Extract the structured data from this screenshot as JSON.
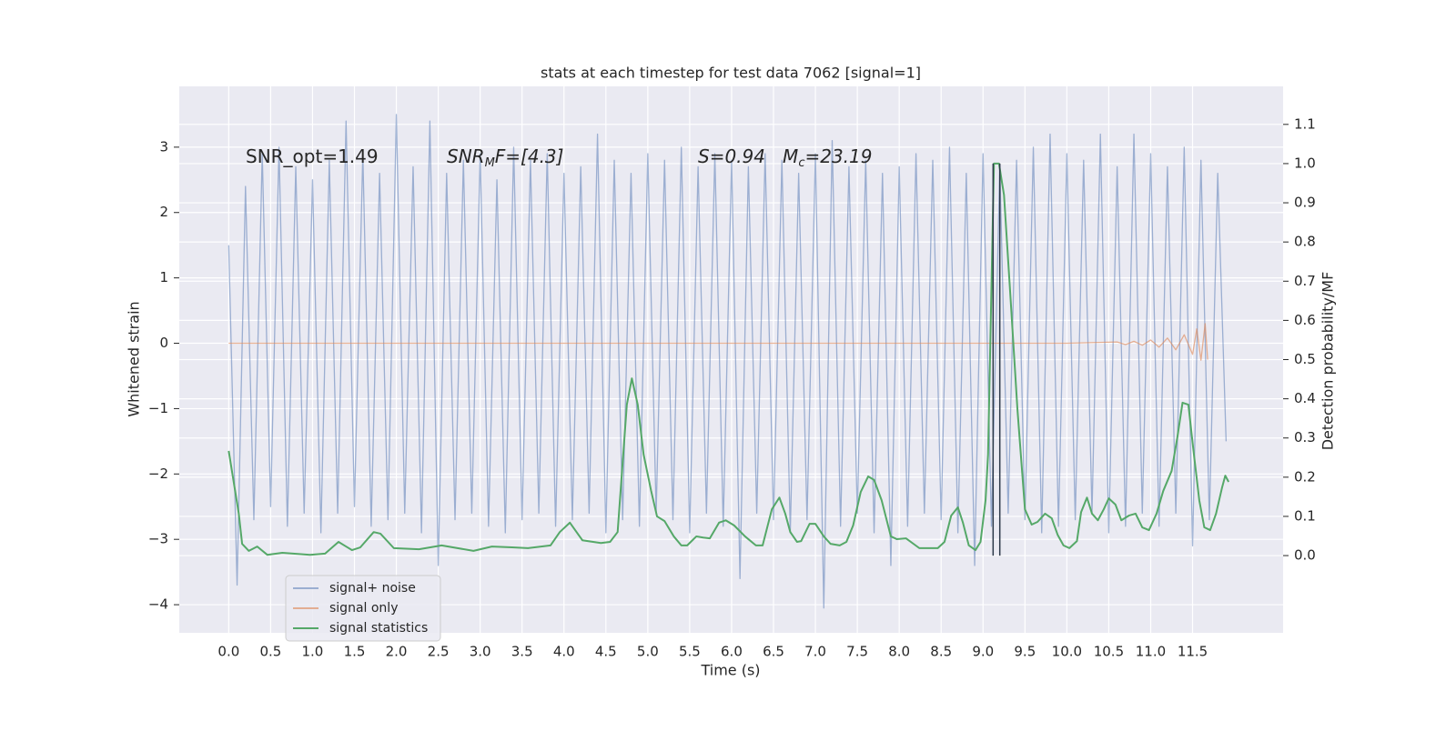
{
  "chart_data": {
    "type": "line",
    "title": "stats at each timestep for test data 7062 [signal=1]",
    "xlabel": "Time (s)",
    "ylabel": "Whitened strain",
    "y2label": "Detection probability/MF",
    "background": "#eaeaf2",
    "grid": true,
    "legend": "lower left",
    "xlim": [
      -0.59,
      12.58
    ],
    "ylim": [
      -4.43,
      3.93
    ],
    "y2lim": [
      -0.197,
      1.197
    ],
    "xticks": [
      {
        "value": 0,
        "label": "0.0"
      },
      0.5,
      {
        "value": 1,
        "label": "1.0"
      },
      1.5,
      {
        "value": 2,
        "label": "2.0"
      },
      2.5,
      {
        "value": 3,
        "label": "3.0"
      },
      3.5,
      {
        "value": 4,
        "label": "4.0"
      },
      4.5,
      {
        "value": 5,
        "label": "5.0"
      },
      5.5,
      {
        "value": 6,
        "label": "6.0"
      },
      6.5,
      {
        "value": 7,
        "label": "7.0"
      },
      7.5,
      {
        "value": 8,
        "label": "8.0"
      },
      8.5,
      {
        "value": 9,
        "label": "9.0"
      },
      9.5,
      {
        "value": 10,
        "label": "10.0"
      },
      10.5,
      {
        "value": 11,
        "label": "11.0"
      },
      11.5
    ],
    "yticks": [
      {
        "value": -4,
        "label": "−4"
      },
      {
        "value": -3,
        "label": "−3"
      },
      {
        "value": -2,
        "label": "−2"
      },
      {
        "value": -1,
        "label": "−1"
      },
      0,
      1,
      2,
      3
    ],
    "y2ticks": [
      {
        "value": 0,
        "label": "0.0"
      },
      0.1,
      0.2,
      0.3,
      0.4,
      0.5,
      0.6,
      0.7,
      0.8,
      0.9,
      {
        "value": 1,
        "label": "1.0"
      },
      1.1
    ],
    "annotations": [
      [
        "SNR_opt=1.49"
      ],
      [
        "SNR",
        "M",
        "F=[4.3]"
      ],
      [
        "S=0.94   M",
        "c",
        "=23.19"
      ]
    ],
    "vlines": {
      "x": [
        9.12,
        9.2
      ],
      "span": [
        0,
        1
      ],
      "axis": "y2",
      "color": "#2d3a4a"
    },
    "series": [
      {
        "name": "signal+ noise",
        "color": "#4c72b0",
        "opacity": 0.5,
        "x": [
          0,
          0.1,
          0.2,
          0.3,
          0.4,
          0.5,
          0.6,
          0.7,
          0.8,
          0.9,
          1,
          1.1,
          1.2,
          1.3,
          1.4,
          1.5,
          1.6,
          1.7,
          1.8,
          1.9,
          2,
          2.1,
          2.2,
          2.3,
          2.4,
          2.5,
          2.6,
          2.7,
          2.8,
          2.9,
          3,
          3.1,
          3.2,
          3.3,
          3.4,
          3.5,
          3.6,
          3.7,
          3.8,
          3.9,
          4,
          4.1,
          4.2,
          4.3,
          4.4,
          4.5,
          4.6,
          4.7,
          4.8,
          4.9,
          5,
          5.1,
          5.2,
          5.3,
          5.4,
          5.5,
          5.6,
          5.7,
          5.8,
          5.9,
          6,
          6.1,
          6.2,
          6.3,
          6.4,
          6.5,
          6.6,
          6.7,
          6.8,
          6.9,
          7,
          7.1,
          7.2,
          7.3,
          7.4,
          7.5,
          7.6,
          7.7,
          7.8,
          7.9,
          8,
          8.1,
          8.2,
          8.3,
          8.4,
          8.5,
          8.6,
          8.7,
          8.8,
          8.9,
          9,
          9.1,
          9.2,
          9.3,
          9.4,
          9.5,
          9.6,
          9.7,
          9.8,
          9.9,
          10,
          10.1,
          10.2,
          10.3,
          10.4,
          10.5,
          10.6,
          10.7,
          10.8,
          10.9,
          11,
          11.1,
          11.2,
          11.3,
          11.4,
          11.5,
          11.6,
          11.7,
          11.8,
          11.9
        ],
        "values": [
          1.5,
          -3.7,
          2.4,
          -2.7,
          2.9,
          -2.5,
          3.0,
          -2.8,
          2.7,
          -2.6,
          2.5,
          -2.9,
          2.8,
          -2.6,
          3.4,
          -2.5,
          2.9,
          -2.8,
          2.6,
          -2.7,
          3.5,
          -2.6,
          2.7,
          -2.9,
          3.4,
          -3.4,
          2.6,
          -2.7,
          2.8,
          -2.6,
          2.9,
          -2.8,
          2.5,
          -2.9,
          3.0,
          -2.7,
          2.8,
          -2.6,
          2.9,
          -2.8,
          2.6,
          -2.7,
          2.7,
          -2.6,
          3.2,
          -2.9,
          2.8,
          -2.7,
          2.6,
          -2.8,
          2.9,
          -2.6,
          2.8,
          -2.7,
          3.0,
          -2.9,
          2.7,
          -2.6,
          2.9,
          -2.8,
          2.8,
          -3.6,
          2.7,
          -2.6,
          2.9,
          -2.7,
          2.8,
          -2.9,
          2.6,
          -2.7,
          2.9,
          -4.05,
          3.1,
          -2.8,
          2.7,
          -2.6,
          2.8,
          -2.9,
          2.6,
          -3.4,
          2.7,
          -2.8,
          2.9,
          -2.6,
          2.8,
          -2.7,
          3.0,
          -2.9,
          2.6,
          -3.4,
          2.9,
          -2.8,
          2.7,
          -2.6,
          2.8,
          -2.7,
          3.0,
          -2.9,
          3.2,
          -2.8,
          2.9,
          -2.7,
          2.8,
          -2.6,
          3.2,
          -2.9,
          2.7,
          -2.8,
          3.2,
          -2.6,
          2.9,
          -2.8,
          2.7,
          -2.6,
          3.0,
          -3.1,
          2.8,
          -2.7,
          2.6,
          -1.5
        ]
      },
      {
        "name": "signal only",
        "color": "#dd8452",
        "opacity": 0.6,
        "x": [
          0,
          10.0,
          10.6,
          10.7,
          10.8,
          10.9,
          11.0,
          11.1,
          11.2,
          11.3,
          11.4,
          11.5,
          11.55,
          11.6,
          11.65,
          11.68
        ],
        "values": [
          0,
          0,
          0.02,
          -0.02,
          0.03,
          -0.03,
          0.05,
          -0.06,
          0.08,
          -0.1,
          0.13,
          -0.17,
          0.22,
          -0.26,
          0.3,
          -0.25
        ]
      },
      {
        "name": "signal statistics",
        "color": "#55a868",
        "opacity": 1,
        "axis": "y2",
        "x": [
          0,
          0.12,
          0.16,
          0.24,
          0.34,
          0.46,
          0.64,
          0.97,
          1.15,
          1.31,
          1.47,
          1.57,
          1.73,
          1.81,
          1.97,
          2.27,
          2.54,
          2.92,
          3.14,
          3.38,
          3.57,
          3.84,
          3.95,
          4.07,
          4.22,
          4.44,
          4.55,
          4.64,
          4.75,
          4.81,
          4.88,
          4.95,
          5.04,
          5.11,
          5.2,
          5.31,
          5.4,
          5.47,
          5.58,
          5.66,
          5.74,
          5.85,
          5.93,
          6.03,
          6.16,
          6.29,
          6.37,
          6.48,
          6.57,
          6.64,
          6.7,
          6.78,
          6.83,
          6.93,
          7.0,
          7.1,
          7.18,
          7.29,
          7.37,
          7.45,
          7.54,
          7.63,
          7.7,
          7.79,
          7.9,
          7.97,
          8.08,
          8.24,
          8.46,
          8.54,
          8.62,
          8.7,
          8.76,
          8.83,
          8.91,
          8.97,
          9.03,
          9.06,
          9.13,
          9.19,
          9.25,
          9.33,
          9.41,
          9.5,
          9.58,
          9.65,
          9.74,
          9.82,
          9.89,
          9.96,
          10.03,
          10.12,
          10.17,
          10.24,
          10.3,
          10.37,
          10.44,
          10.5,
          10.58,
          10.65,
          10.74,
          10.82,
          10.9,
          10.98,
          11.07,
          11.15,
          11.25,
          11.32,
          11.38,
          11.45,
          11.51,
          11.58,
          11.64,
          11.71,
          11.78,
          11.85,
          11.89,
          11.93
        ],
        "values": [
          0.267,
          0.107,
          0.03,
          0.012,
          0.023,
          0.002,
          0.007,
          0.002,
          0.005,
          0.035,
          0.014,
          0.021,
          0.06,
          0.056,
          0.019,
          0.016,
          0.026,
          0.012,
          0.023,
          0.021,
          0.019,
          0.026,
          0.06,
          0.084,
          0.039,
          0.032,
          0.035,
          0.06,
          0.385,
          0.452,
          0.385,
          0.258,
          0.165,
          0.1,
          0.088,
          0.049,
          0.026,
          0.026,
          0.049,
          0.046,
          0.044,
          0.084,
          0.09,
          0.077,
          0.049,
          0.026,
          0.026,
          0.118,
          0.148,
          0.107,
          0.06,
          0.035,
          0.037,
          0.081,
          0.081,
          0.049,
          0.03,
          0.026,
          0.035,
          0.077,
          0.162,
          0.202,
          0.193,
          0.141,
          0.049,
          0.042,
          0.044,
          0.019,
          0.019,
          0.035,
          0.102,
          0.123,
          0.084,
          0.026,
          0.014,
          0.035,
          0.141,
          0.258,
          1.0,
          1.0,
          0.92,
          0.65,
          0.374,
          0.118,
          0.079,
          0.086,
          0.107,
          0.095,
          0.053,
          0.026,
          0.019,
          0.037,
          0.111,
          0.148,
          0.107,
          0.09,
          0.118,
          0.146,
          0.13,
          0.09,
          0.102,
          0.107,
          0.072,
          0.065,
          0.107,
          0.165,
          0.216,
          0.304,
          0.39,
          0.385,
          0.269,
          0.141,
          0.072,
          0.065,
          0.107,
          0.172,
          0.204,
          0.188
        ]
      }
    ]
  }
}
